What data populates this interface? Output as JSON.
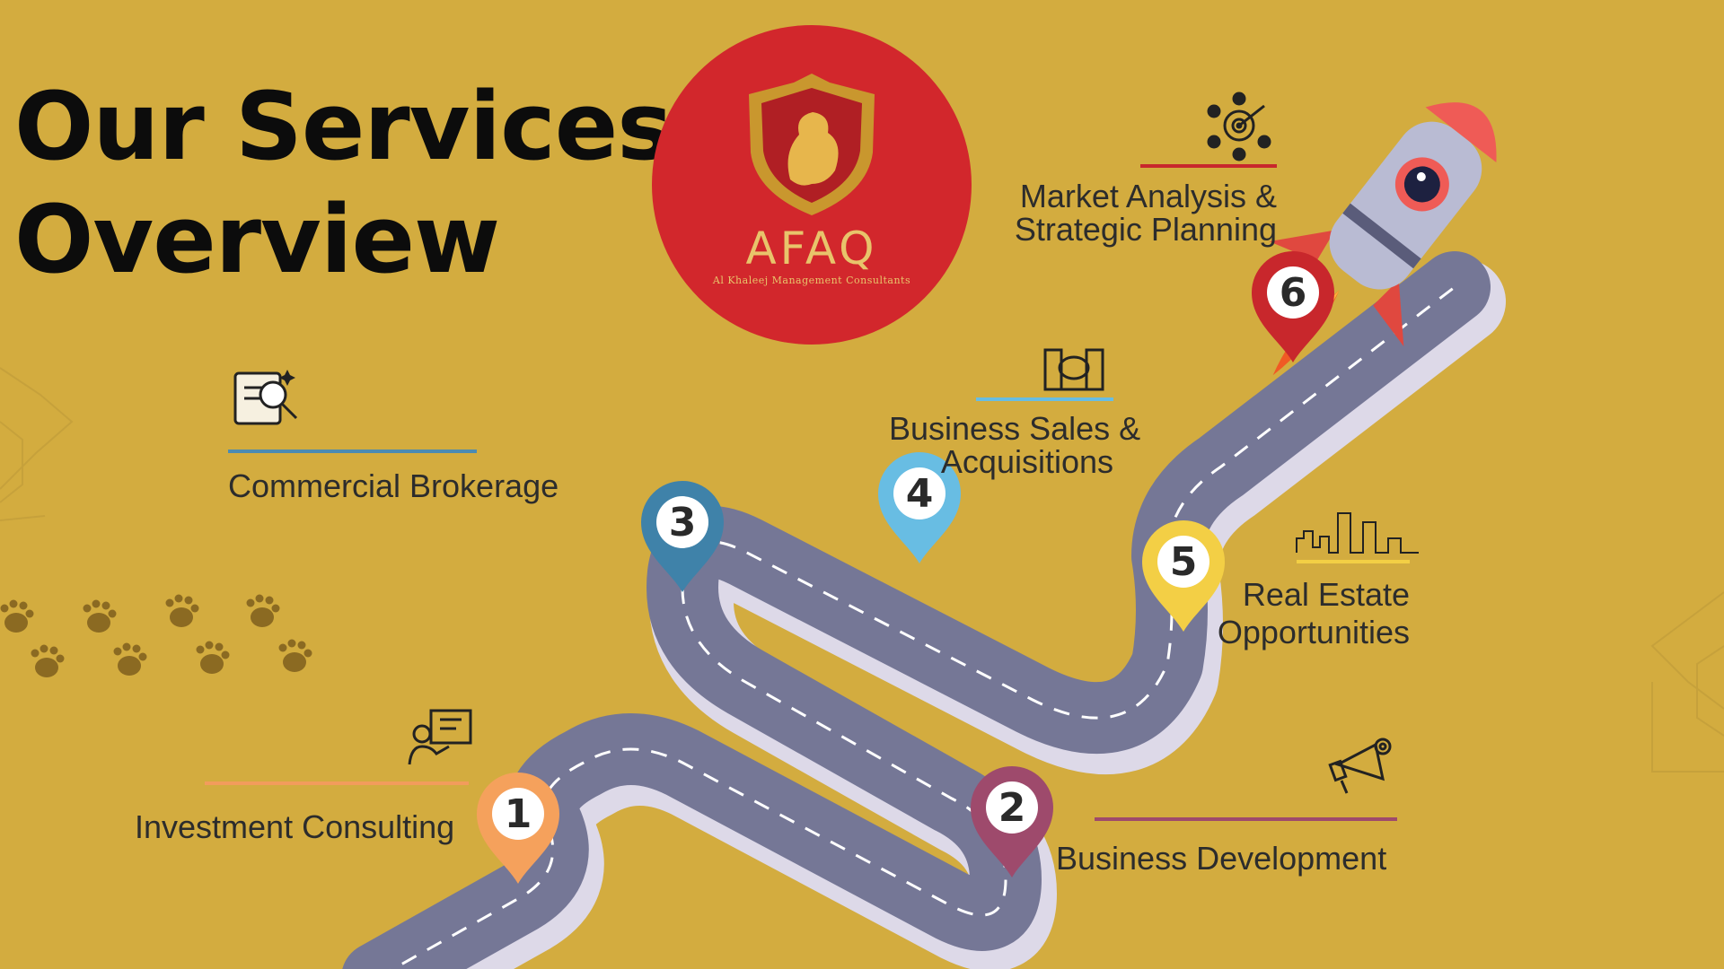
{
  "page": {
    "title_line1": "Our Services",
    "title_line2": "Overview",
    "background_color": "#d3ac3f"
  },
  "logo": {
    "name": "AFAQ",
    "subtitle": "Al Khaleej Management Consultants",
    "circle_color": "#d2272c",
    "gold_color": "#e8c46b",
    "icon": "lion-shield-icon"
  },
  "services": [
    {
      "number": "1",
      "lines": [
        "Investment Consulting"
      ],
      "pin_color": "#f5a15c",
      "icon": "presentation-icon"
    },
    {
      "number": "2",
      "lines": [
        "Business Development"
      ],
      "pin_color": "#9e4a6c",
      "icon": "megaphone-gear-icon"
    },
    {
      "number": "3",
      "lines": [
        "Commercial Brokerage"
      ],
      "pin_color": "#3f82a9",
      "icon": "document-search-icon"
    },
    {
      "number": "4",
      "lines": [
        "Business Sales &",
        "Acquisitions"
      ],
      "pin_color": "#68bde3",
      "icon": "handshake-buildings-icon"
    },
    {
      "number": "5",
      "lines": [
        "Real Estate",
        "Opportunities"
      ],
      "pin_color": "#f3cf45",
      "icon": "city-skyline-icon"
    },
    {
      "number": "6",
      "lines": [
        "Market Analysis &",
        "Strategic Planning"
      ],
      "pin_color": "#c8272c",
      "icon": "target-team-icon"
    }
  ],
  "decor": {
    "road_color": "#757796",
    "road_shadow_color": "#ddd9e8",
    "rocket_icon": "rocket-icon",
    "footprints_icon": "paw-prints-icon"
  }
}
